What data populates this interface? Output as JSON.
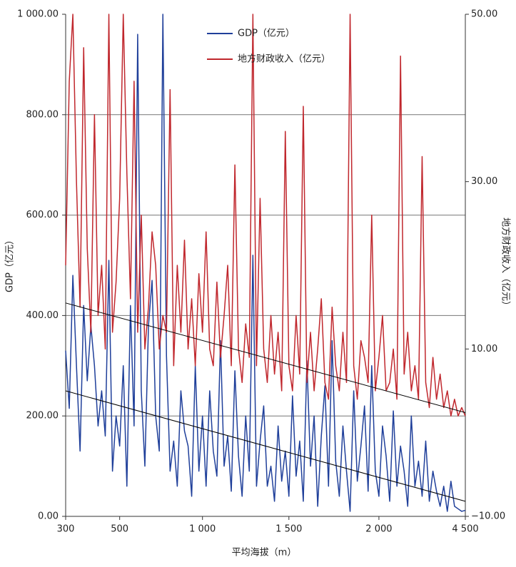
{
  "chart_data": {
    "type": "line",
    "x_label": "平均海拔（m）",
    "y_label": "GDP（亿元）",
    "y2_label": "地方财政收入（亿元）",
    "x": [
      0,
      1,
      2,
      3,
      4,
      5,
      6,
      7,
      8,
      9,
      10,
      11,
      12,
      13,
      14,
      15,
      16,
      17,
      18,
      19,
      20,
      21,
      22,
      23,
      24,
      25,
      26,
      27,
      28,
      29,
      30,
      31,
      32,
      33,
      34,
      35,
      36,
      37,
      38,
      39,
      40,
      41,
      42,
      43,
      44,
      45,
      46,
      47,
      48,
      49,
      50,
      51,
      52,
      53,
      54,
      55,
      56,
      57,
      58,
      59,
      60,
      61,
      62,
      63,
      64,
      65,
      66,
      67,
      68,
      69,
      70,
      71,
      72,
      73,
      74,
      75,
      76,
      77,
      78,
      79,
      80,
      81,
      82,
      83,
      84,
      85,
      86,
      87,
      88,
      89,
      90,
      91,
      92,
      93,
      94,
      95,
      96,
      97,
      98,
      99,
      100,
      101,
      102,
      103,
      104,
      105,
      106,
      107,
      108,
      109,
      110,
      111
    ],
    "xlim": [
      0,
      111
    ],
    "xticks": [
      {
        "value": 0,
        "label": "300"
      },
      {
        "value": 15,
        "label": "500"
      },
      {
        "value": 38,
        "label": "1 000"
      },
      {
        "value": 62,
        "label": "1 500"
      },
      {
        "value": 87,
        "label": "2 000"
      },
      {
        "value": 111,
        "label": "4 500"
      }
    ],
    "ylim": [
      0,
      1000
    ],
    "yticks": [
      {
        "value": 0,
        "label": "0.00"
      },
      {
        "value": 200,
        "label": "200.00"
      },
      {
        "value": 400,
        "label": "400.00"
      },
      {
        "value": 600,
        "label": "600.00"
      },
      {
        "value": 800,
        "label": "800.00"
      },
      {
        "value": 1000,
        "label": "1 000.00"
      }
    ],
    "y2lim": [
      -10,
      50
    ],
    "y2ticks": [
      {
        "value": -10,
        "label": "−10.00"
      },
      {
        "value": 10,
        "label": "10.00"
      },
      {
        "value": 30,
        "label": "30.00"
      },
      {
        "value": 50,
        "label": "50.00"
      }
    ],
    "grid": true,
    "legend": "top",
    "series": [
      {
        "name": "GDP（亿元）",
        "color": "#1f3f9a",
        "values": [
          330,
          215,
          480,
          300,
          130,
          420,
          270,
          380,
          300,
          180,
          250,
          160,
          510,
          90,
          200,
          140,
          300,
          60,
          420,
          180,
          960,
          250,
          100,
          380,
          470,
          200,
          130,
          1000,
          320,
          90,
          150,
          60,
          250,
          170,
          140,
          40,
          300,
          90,
          200,
          60,
          250,
          130,
          80,
          350,
          100,
          160,
          50,
          290,
          120,
          40,
          200,
          90,
          520,
          60,
          150,
          220,
          60,
          100,
          30,
          180,
          70,
          130,
          40,
          240,
          80,
          150,
          30,
          310,
          100,
          200,
          20,
          160,
          260,
          60,
          350,
          110,
          40,
          180,
          90,
          10,
          250,
          70,
          140,
          220,
          50,
          300,
          90,
          40,
          180,
          120,
          30,
          210,
          60,
          140,
          90,
          20,
          200,
          60,
          110,
          40,
          150,
          30,
          90,
          50,
          20,
          60,
          10,
          70,
          20,
          15,
          10,
          12
        ],
        "trend": [
          250,
          30
        ]
      },
      {
        "name": "地方财政收入（亿元）",
        "color": "#c0272d",
        "axis": "y2",
        "values": [
          20,
          42,
          50,
          30,
          15,
          46,
          22,
          12,
          38,
          14,
          20,
          10,
          50,
          12,
          18,
          28,
          50,
          31,
          16,
          42,
          12,
          26,
          10,
          15,
          24,
          20,
          10,
          14,
          12,
          41,
          8,
          20,
          12,
          23,
          10,
          16,
          8,
          19,
          12,
          24,
          10,
          8,
          18,
          9,
          14,
          20,
          8,
          32,
          10,
          6,
          13,
          9,
          50,
          8,
          28,
          10,
          6,
          14,
          7,
          12,
          5,
          36,
          8,
          5,
          14,
          7,
          39,
          6,
          12,
          5,
          10,
          16,
          6,
          4,
          15,
          8,
          5,
          12,
          6,
          50,
          8,
          4,
          11,
          9,
          6,
          26,
          5,
          9,
          14,
          5,
          6,
          10,
          4,
          45,
          7,
          12,
          5,
          8,
          4,
          33,
          6,
          3,
          9,
          4,
          7,
          3,
          5,
          2,
          4,
          2,
          3,
          2
        ],
        "trend": [
          15.5,
          2.4
        ]
      }
    ]
  }
}
